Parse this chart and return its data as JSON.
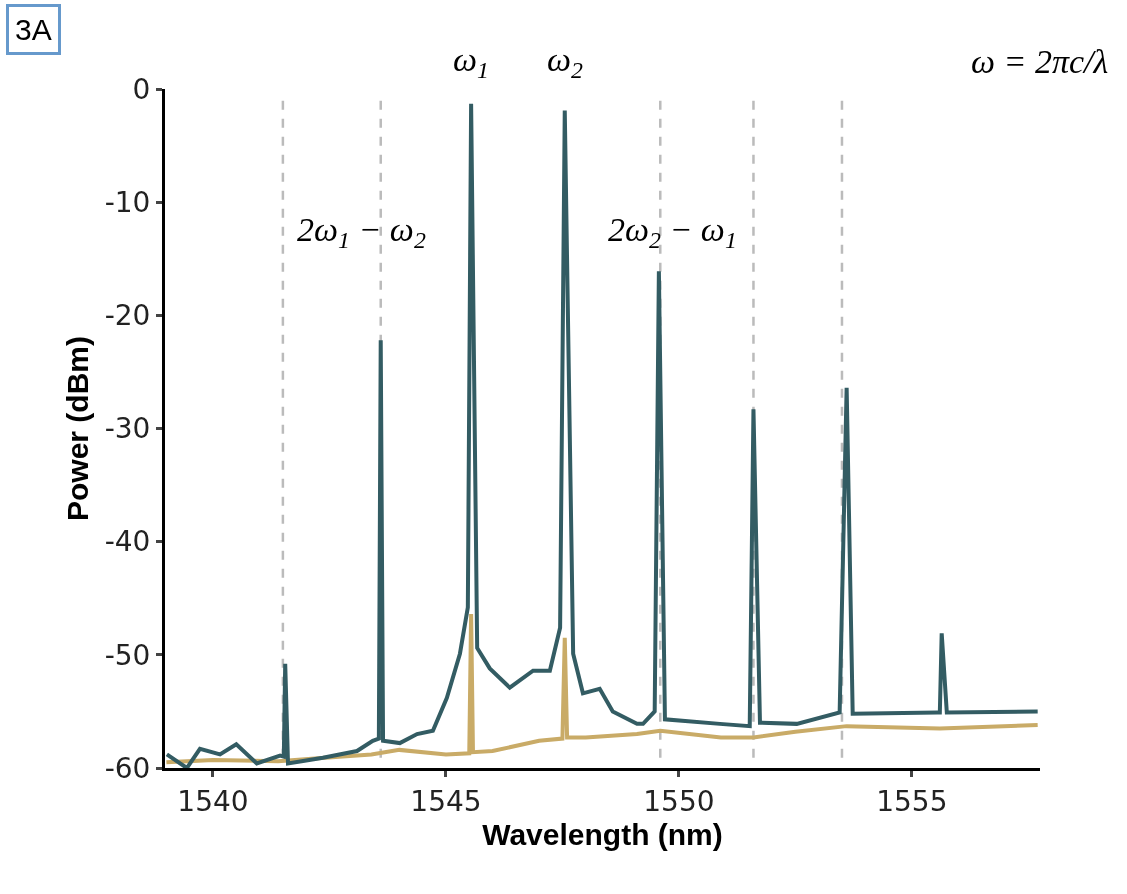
{
  "chart_data": {
    "type": "line",
    "xlabel": "Wavelength (nm)",
    "ylabel": "Power (dBm)",
    "xlim": [
      1538.97,
      1557.75
    ],
    "xticks": [
      1540,
      1545,
      1550,
      1555
    ],
    "ylim": [
      -60,
      0
    ],
    "yticks": [
      0,
      -10,
      -20,
      -30,
      -40,
      -50,
      -60
    ],
    "grid": false,
    "marker": "none",
    "line_style": "solid",
    "annotations": [
      "3A",
      "ω$_{1}$",
      "ω$_{2}$",
      "2ω$_{1}$ − ω$_{2}$",
      "2ω$_{2}$ − ω$_{1}$",
      "ω = 2πc/λ"
    ],
    "ref_lines": [
      {
        "axis": "x",
        "value": 1541.5,
        "color": "#bbbbbb",
        "line_style": "dashed"
      },
      {
        "axis": "x",
        "value": 1543.6,
        "color": "#bbbbbb",
        "line_style": "dashed"
      },
      {
        "axis": "x",
        "value": 1549.6,
        "color": "#bbbbbb",
        "line_style": "dashed"
      },
      {
        "axis": "x",
        "value": 1551.6,
        "color": "#bbbbbb",
        "line_style": "dashed"
      },
      {
        "axis": "x",
        "value": 1553.5,
        "color": "#bbbbbb",
        "line_style": "dashed"
      }
    ],
    "series": [
      {
        "color": "#c9ab67",
        "x": [
          1539.0,
          1540.0,
          1541.4,
          1542.4,
          1543.4,
          1544.0,
          1545.0,
          1545.5,
          1545.54,
          1545.58,
          1546.0,
          1547.0,
          1547.5,
          1547.55,
          1547.6,
          1548.0,
          1549.1,
          1549.6,
          1550.9,
          1551.6,
          1552.5,
          1553.6,
          1555.6,
          1557.7
        ],
        "values": [
          -59.5,
          -59.3,
          -59.4,
          -59.1,
          -58.8,
          -58.4,
          -58.8,
          -58.7,
          -46.4,
          -58.6,
          -58.5,
          -57.6,
          -57.4,
          -48.5,
          -57.3,
          -57.3,
          -57.0,
          -56.7,
          -57.3,
          -57.3,
          -56.8,
          -56.3,
          -56.5,
          -56.2
        ]
      },
      {
        "color": "#335c63",
        "x": [
          1539.01,
          1539.44,
          1539.72,
          1540.15,
          1540.5,
          1540.94,
          1541.44,
          1541.52,
          1541.55,
          1541.61,
          1542.36,
          1543.09,
          1543.43,
          1543.56,
          1543.6,
          1543.65,
          1544.01,
          1544.38,
          1544.72,
          1545.02,
          1545.3,
          1545.47,
          1545.54,
          1545.67,
          1545.94,
          1546.37,
          1546.87,
          1547.23,
          1547.45,
          1547.55,
          1547.73,
          1547.94,
          1548.3,
          1548.58,
          1549.1,
          1549.23,
          1549.48,
          1549.57,
          1549.7,
          1550.88,
          1551.52,
          1551.6,
          1551.74,
          1552.53,
          1553.45,
          1553.6,
          1553.73,
          1555.55,
          1555.6,
          1555.64,
          1555.75,
          1557.7
        ],
        "values": [
          -58.8,
          -60.0,
          -58.3,
          -58.8,
          -57.9,
          -59.6,
          -58.9,
          -59.0,
          -50.8,
          -59.6,
          -59.1,
          -58.5,
          -57.6,
          -57.4,
          -22.2,
          -57.6,
          -57.8,
          -57.0,
          -56.7,
          -53.8,
          -49.9,
          -45.8,
          -1.3,
          -49.4,
          -51.2,
          -52.9,
          -51.4,
          -51.4,
          -47.6,
          -1.9,
          -49.9,
          -53.4,
          -53.0,
          -55.0,
          -56.1,
          -56.1,
          -55.0,
          -16.1,
          -55.7,
          -56.1,
          -56.3,
          -28.3,
          -56.0,
          -56.1,
          -55.1,
          -26.4,
          -55.2,
          -55.1,
          -55.1,
          -48.1,
          -55.1,
          -55.0
        ]
      }
    ]
  }
}
